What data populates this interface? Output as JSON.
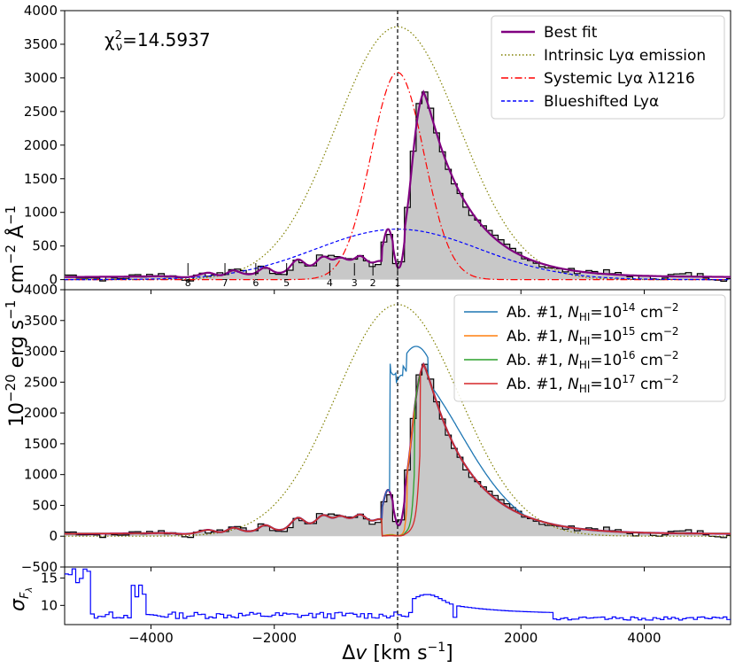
{
  "chart_data": {
    "type": "line",
    "xlabel": "Δv [km s⁻¹]",
    "ylabel": "10⁻²⁰ erg s⁻¹ cm⁻² Å⁻¹",
    "xlim": [
      -5400,
      5400
    ],
    "x_ticks": [
      -4000,
      -2000,
      0,
      2000,
      4000
    ],
    "x_tick_labels": [
      "−4000",
      "−2000",
      "0",
      "2000",
      "4000"
    ],
    "systemic_line_x": 0,
    "panels": [
      {
        "id": "top",
        "ylim": [
          -150,
          4000
        ],
        "y_ticks": [
          0,
          500,
          1000,
          1500,
          2000,
          2500,
          3000,
          3500,
          4000
        ],
        "annotation": "χ²ν=14.5937",
        "absorber_markers": [
          {
            "label": "8",
            "x": -3400
          },
          {
            "label": "7",
            "x": -2800
          },
          {
            "label": "6",
            "x": -2300
          },
          {
            "label": "5",
            "x": -1800
          },
          {
            "label": "4",
            "x": -1100
          },
          {
            "label": "3",
            "x": -700
          },
          {
            "label": "2",
            "x": -400
          },
          {
            "label": "1",
            "x": 0
          }
        ],
        "legend": [
          {
            "label": "Best fit",
            "color": "#800080",
            "style": "solid"
          },
          {
            "label": "Intrinsic Lyα emission",
            "color": "#808000",
            "style": "dotted"
          },
          {
            "label": "Systemic Lyα λ1216",
            "color": "#ff0000",
            "style": "dashdot"
          },
          {
            "label": "Blueshifted Lyα",
            "color": "#0000ff",
            "style": "dashed"
          }
        ]
      },
      {
        "id": "middle",
        "ylim": [
          -500,
          4000
        ],
        "y_ticks": [
          -500,
          0,
          500,
          1000,
          1500,
          2000,
          2500,
          3000,
          3500,
          4000
        ],
        "legend": [
          {
            "label_prefix": "Ab. #1, ",
            "label_n": "N",
            "label_sub": "HI",
            "label_eq": "=10",
            "label_exp": "14",
            "label_unit": " cm",
            "label_unit_exp": "−2",
            "color": "#1f77b4"
          },
          {
            "label_prefix": "Ab. #1, ",
            "label_n": "N",
            "label_sub": "HI",
            "label_eq": "=10",
            "label_exp": "15",
            "label_unit": " cm",
            "label_unit_exp": "−2",
            "color": "#ff7f0e"
          },
          {
            "label_prefix": "Ab. #1, ",
            "label_n": "N",
            "label_sub": "HI",
            "label_eq": "=10",
            "label_exp": "16",
            "label_unit": " cm",
            "label_unit_exp": "−2",
            "color": "#2ca02c"
          },
          {
            "label_prefix": "Ab. #1, ",
            "label_n": "N",
            "label_sub": "HI",
            "label_eq": "=10",
            "label_exp": "17",
            "label_unit": " cm",
            "label_unit_exp": "−2",
            "color": "#d62728"
          }
        ]
      },
      {
        "id": "bottom",
        "ylabel": "σF_λ",
        "ylim": [
          6.5,
          17
        ],
        "y_ticks": [
          10,
          15
        ],
        "series_color": "#0000ff"
      }
    ],
    "series": {
      "intrinsic": {
        "amp": 3760,
        "center": 0,
        "sigma": 1000
      },
      "systemic": {
        "amp": 3080,
        "center": 0,
        "sigma": 430
      },
      "blueshifted": {
        "amp": 750,
        "center": 0,
        "sigma": 1330
      },
      "observed_peak": 2790,
      "observed_peak_x": 420
    }
  }
}
